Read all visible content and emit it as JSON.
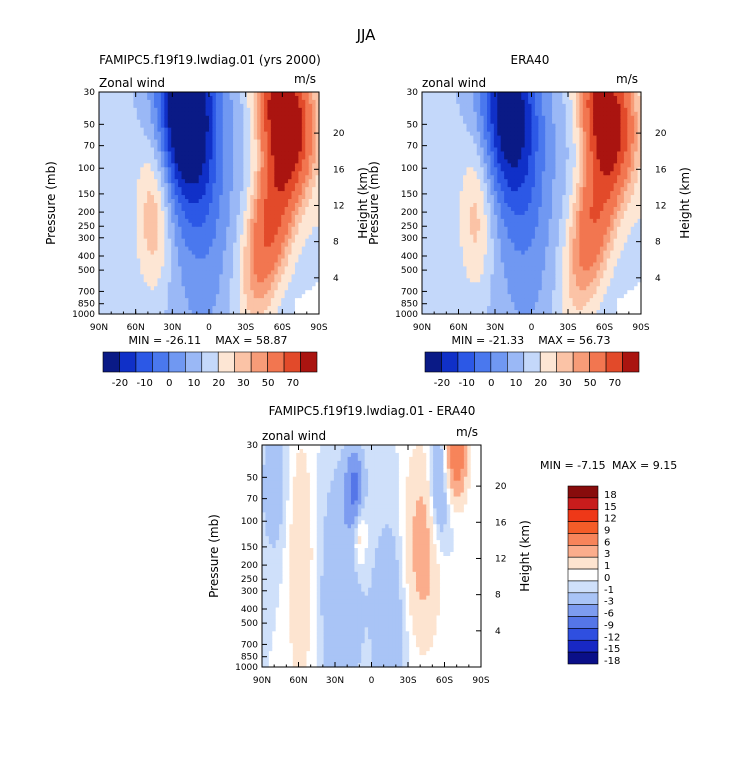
{
  "figure": {
    "title": "JJA"
  },
  "chart_data": [
    {
      "type": "heatmap",
      "title": "FAMIPC5.f19f19.lwdiag.01 (yrs 2000)",
      "subtitle_left": "Zonal wind",
      "subtitle_right": "m/s",
      "ylabel": "Pressure (mb)",
      "ylabel_right": "Height (km)",
      "x_ticks": [
        "90N",
        "60N",
        "30N",
        "0",
        "30S",
        "60S",
        "90S"
      ],
      "y_ticks": [
        "30",
        "50",
        "70",
        "100",
        "150",
        "200",
        "250",
        "300",
        "400",
        "500",
        "700",
        "850",
        "1000"
      ],
      "height_ticks": [
        "20",
        "16",
        "12",
        "8",
        "4"
      ],
      "min_label": "MIN = -26.11",
      "max_label": "MAX = 58.87",
      "min": -26.11,
      "max": 58.87,
      "levels": [
        "-20",
        "-10",
        "0",
        "10",
        "20",
        "30",
        "50",
        "70"
      ],
      "features": [
        {
          "lat": -52,
          "p": 200,
          "value": 22,
          "shape": "vortex"
        },
        {
          "lat": -60,
          "p": 40,
          "value": 58.87,
          "shape": "jet"
        },
        {
          "lat": 45,
          "p": 200,
          "value": 12,
          "shape": "blob"
        },
        {
          "lat": 20,
          "p": 40,
          "value": -26.11,
          "shape": "blob"
        }
      ]
    },
    {
      "type": "heatmap",
      "title": "ERA40",
      "subtitle_left": "zonal wind",
      "subtitle_right": "m/s",
      "ylabel": "Pressure (mb)",
      "ylabel_right": "Height (km)",
      "x_ticks": [
        "90N",
        "60N",
        "30N",
        "0",
        "30S",
        "60S",
        "90S"
      ],
      "y_ticks": [
        "30",
        "50",
        "70",
        "100",
        "150",
        "200",
        "250",
        "300",
        "400",
        "500",
        "700",
        "850",
        "1000"
      ],
      "height_ticks": [
        "20",
        "16",
        "12",
        "8",
        "4"
      ],
      "min_label": "MIN = -21.33",
      "max_label": "MAX = 56.73",
      "min": -21.33,
      "max": 56.73,
      "levels": [
        "-20",
        "-10",
        "0",
        "10",
        "20",
        "30",
        "50",
        "70"
      ],
      "features": [
        {
          "lat": -52,
          "p": 200,
          "value": 20,
          "shape": "vortex"
        },
        {
          "lat": -60,
          "p": 40,
          "value": 56.73,
          "shape": "jet"
        },
        {
          "lat": 45,
          "p": 200,
          "value": 11,
          "shape": "blob"
        },
        {
          "lat": 20,
          "p": 40,
          "value": -21.33,
          "shape": "blob"
        }
      ]
    },
    {
      "type": "heatmap",
      "title": "FAMIPC5.f19f19.lwdiag.01 - ERA40",
      "subtitle_left": "zonal wind",
      "subtitle_right": "m/s",
      "ylabel": "Pressure (mb)",
      "ylabel_right": "Height (km)",
      "x_ticks": [
        "90N",
        "60N",
        "30N",
        "0",
        "30S",
        "60S",
        "90S"
      ],
      "y_ticks": [
        "30",
        "50",
        "70",
        "100",
        "150",
        "200",
        "250",
        "300",
        "400",
        "500",
        "700",
        "850",
        "1000"
      ],
      "height_ticks": [
        "20",
        "16",
        "12",
        "8",
        "4"
      ],
      "min_label": "MIN =   -7.15",
      "max_label": "MAX =    9.15",
      "min": -7.15,
      "max": 9.15,
      "levels": [
        "18",
        "15",
        "12",
        "9",
        "6",
        "3",
        "1",
        "0",
        "-1",
        "-3",
        "-6",
        "-9",
        "-12",
        "-15",
        "-18"
      ],
      "features": [
        {
          "lat": 60,
          "p": 150,
          "value": 2,
          "shape": "band"
        },
        {
          "lat": -40,
          "p": 150,
          "value": 4,
          "shape": "band"
        },
        {
          "lat": -70,
          "p": 35,
          "value": 9.15,
          "shape": "blob"
        },
        {
          "lat": 15,
          "p": 60,
          "value": -7.15,
          "shape": "blob"
        }
      ]
    }
  ],
  "colors": {
    "panel_levels": [
      "#0a1a86",
      "#1030c8",
      "#2c58e6",
      "#4a78ee",
      "#7098f2",
      "#9ab8f6",
      "#c4d8fa",
      "#fde6d4",
      "#fbc3a6",
      "#f79c78",
      "#f27650",
      "#e24a2a",
      "#aa1410"
    ],
    "diff_levels": [
      "#880c0c",
      "#c81c1c",
      "#ee3818",
      "#f45c28",
      "#f7845a",
      "#fbad8c",
      "#fde4d0",
      "#ffffff",
      "#cfe0fa",
      "#a9c4f6",
      "#7d9cf0",
      "#5576e8",
      "#2f4fe0",
      "#1828c4",
      "#0a0f88"
    ]
  }
}
